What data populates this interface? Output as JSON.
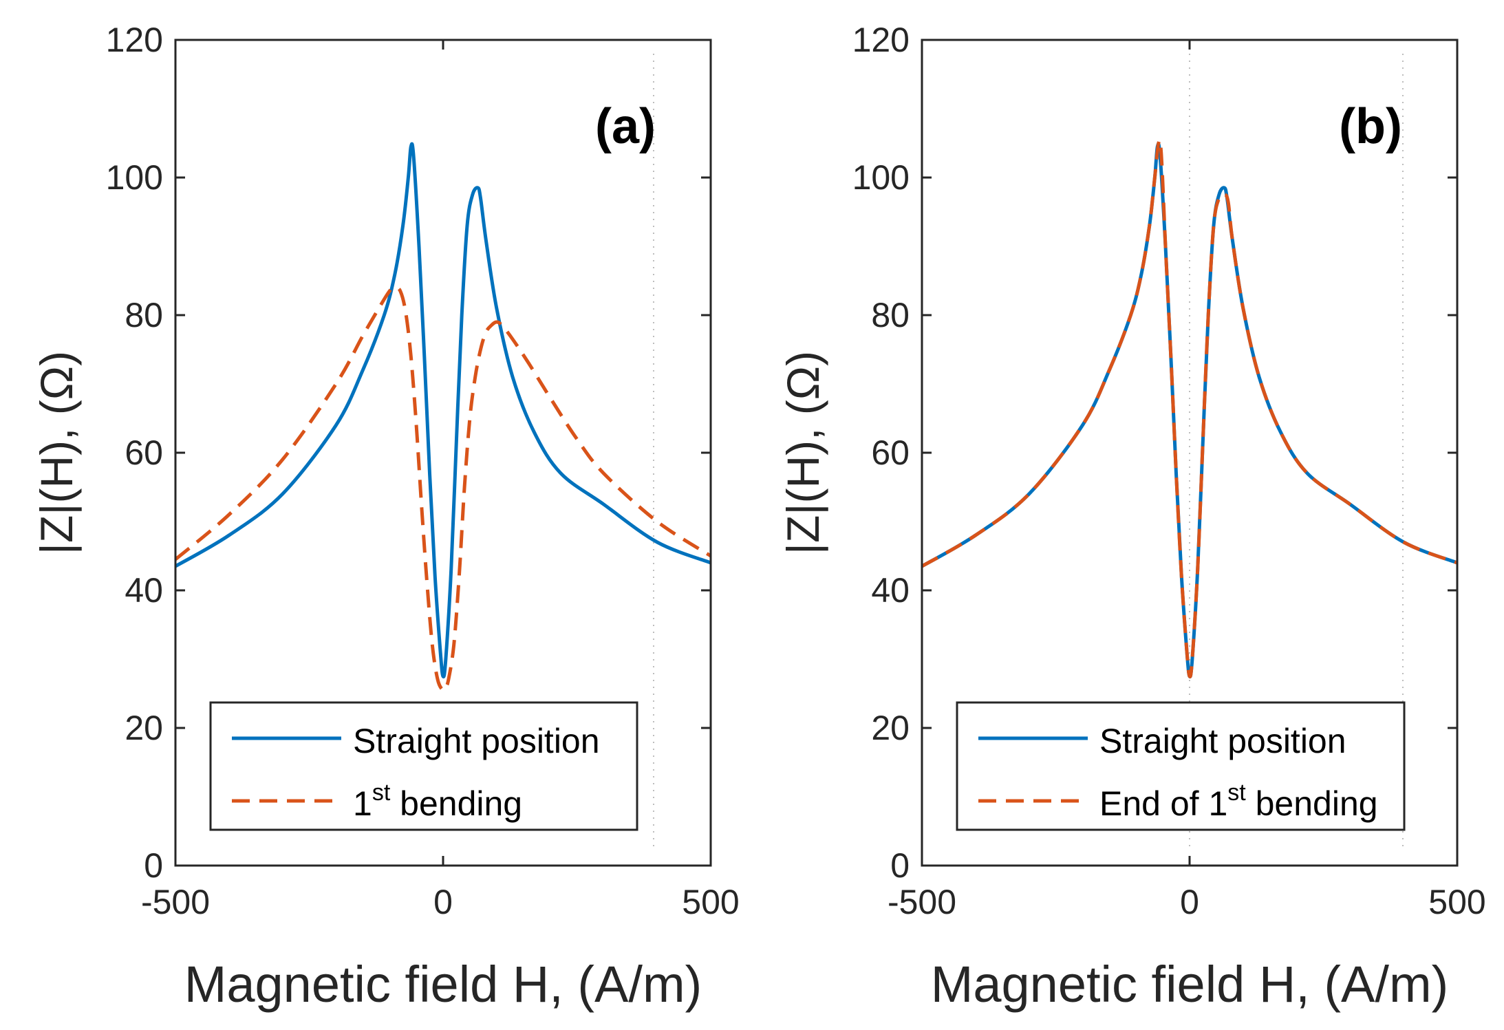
{
  "chart_data": [
    {
      "type": "line",
      "panel_label": "(a)",
      "xlabel": "Magnetic field H, (A/m)",
      "ylabel": "|Z|(H), (Ω)",
      "xlim": [
        -500,
        500
      ],
      "ylim": [
        0,
        120
      ],
      "xticks": [
        "-500",
        "0",
        "500"
      ],
      "yticks": [
        "0",
        "20",
        "40",
        "60",
        "80",
        "100",
        "120"
      ],
      "legend_position": "bottom",
      "series": [
        {
          "name": "Straight position",
          "color": "#0072BD",
          "style": "solid",
          "x": [
            -500,
            -400,
            -300,
            -200,
            -150,
            -110,
            -90,
            -75,
            -65,
            -60,
            -55,
            -45,
            -35,
            -25,
            -15,
            -5,
            0,
            5,
            15,
            25,
            35,
            45,
            55,
            65,
            70,
            80,
            100,
            130,
            170,
            220,
            300,
            400,
            500
          ],
          "y": [
            43.5,
            48.0,
            54.0,
            64.0,
            72.0,
            80.0,
            86.0,
            93.0,
            100.0,
            104.5,
            103.0,
            90.0,
            74.0,
            57.0,
            42.0,
            31.0,
            27.5,
            30.0,
            43.0,
            62.0,
            80.0,
            93.0,
            97.5,
            98.5,
            97.0,
            91.0,
            81.0,
            71.0,
            63.0,
            57.0,
            52.5,
            47.0,
            44.0
          ]
        },
        {
          "name": "1st bending",
          "legend_main": "1",
          "legend_sup": "st",
          "legend_tail": " bending",
          "color": "#D95319",
          "style": "dashed",
          "x": [
            -500,
            -400,
            -300,
            -200,
            -150,
            -120,
            -100,
            -90,
            -80,
            -70,
            -60,
            -50,
            -40,
            -30,
            -20,
            -10,
            0,
            5,
            10,
            20,
            30,
            40,
            50,
            60,
            70,
            80,
            90,
            100,
            110,
            130,
            160,
            200,
            250,
            300,
            400,
            500
          ],
          "y": [
            44.5,
            51.0,
            59.0,
            70.0,
            77.0,
            81.0,
            83.5,
            84.0,
            83.5,
            80.5,
            74.0,
            64.0,
            52.0,
            41.0,
            32.0,
            27.0,
            25.5,
            26.0,
            27.0,
            32.0,
            42.0,
            55.0,
            65.0,
            71.0,
            75.0,
            77.5,
            78.5,
            79.0,
            78.5,
            76.5,
            73.0,
            68.0,
            62.0,
            57.0,
            50.0,
            45.0
          ]
        }
      ]
    },
    {
      "type": "line",
      "panel_label": "(b)",
      "xlabel": "Magnetic field H, (A/m)",
      "ylabel": "|Z|(H), (Ω)",
      "xlim": [
        -500,
        500
      ],
      "ylim": [
        0,
        120
      ],
      "xticks": [
        "-500",
        "0",
        "500"
      ],
      "yticks": [
        "0",
        "20",
        "40",
        "60",
        "80",
        "100",
        "120"
      ],
      "legend_position": "bottom",
      "series": [
        {
          "name": "Straight position",
          "color": "#0072BD",
          "style": "solid",
          "x": [
            -500,
            -400,
            -300,
            -200,
            -150,
            -110,
            -90,
            -75,
            -65,
            -60,
            -55,
            -45,
            -35,
            -25,
            -15,
            -5,
            0,
            5,
            15,
            25,
            35,
            45,
            55,
            65,
            70,
            80,
            100,
            130,
            170,
            220,
            300,
            400,
            500
          ],
          "y": [
            43.5,
            48.0,
            54.0,
            64.0,
            72.0,
            80.0,
            86.0,
            93.0,
            100.0,
            104.5,
            103.0,
            90.0,
            74.0,
            57.0,
            42.0,
            31.0,
            27.5,
            30.0,
            43.0,
            62.0,
            80.0,
            93.0,
            97.5,
            98.5,
            97.0,
            91.0,
            81.0,
            71.0,
            63.0,
            57.0,
            52.5,
            47.0,
            44.0
          ]
        },
        {
          "name": "End of 1st bending",
          "legend_main": "End of 1",
          "legend_sup": "st",
          "legend_tail": " bending",
          "color": "#D95319",
          "style": "dashed",
          "x": [
            -500,
            -400,
            -300,
            -200,
            -150,
            -110,
            -90,
            -75,
            -65,
            -58,
            -53,
            -45,
            -35,
            -25,
            -15,
            -5,
            0,
            5,
            15,
            25,
            35,
            45,
            55,
            65,
            72,
            80,
            100,
            130,
            170,
            220,
            300,
            400,
            500
          ],
          "y": [
            43.5,
            48.0,
            54.0,
            64.0,
            72.0,
            80.0,
            86.0,
            93.0,
            100.0,
            105.0,
            103.5,
            90.0,
            74.0,
            57.0,
            42.0,
            31.0,
            27.5,
            30.0,
            43.0,
            62.0,
            80.0,
            93.0,
            97.0,
            97.5,
            96.5,
            91.0,
            81.0,
            71.0,
            63.0,
            57.0,
            52.5,
            47.0,
            44.0
          ]
        }
      ]
    }
  ]
}
